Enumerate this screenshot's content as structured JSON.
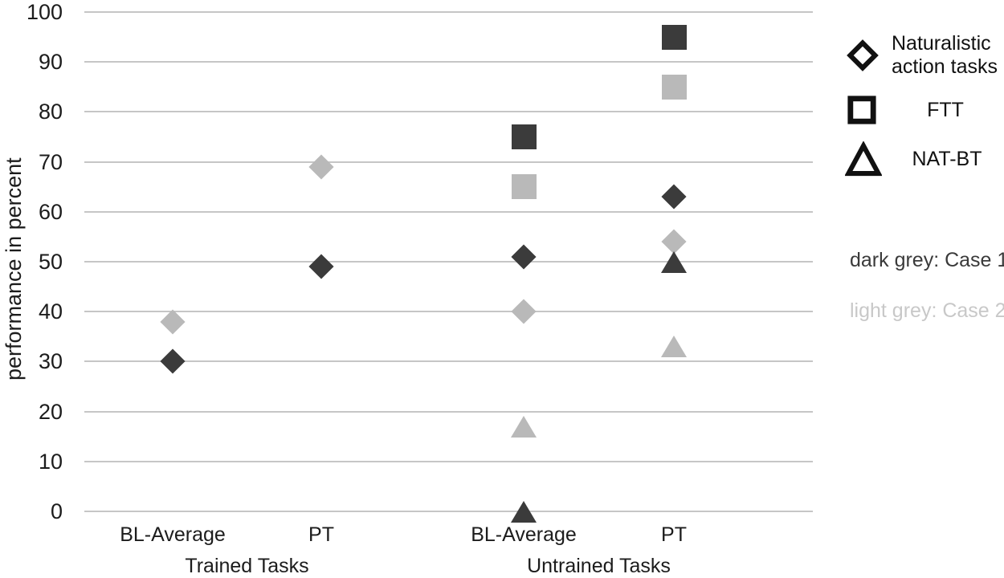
{
  "chart_data": {
    "type": "scatter",
    "title": "",
    "ylabel": "performance in percent",
    "ylim": [
      0,
      100
    ],
    "yticks": [
      0,
      10,
      20,
      30,
      40,
      50,
      60,
      70,
      80,
      90,
      100
    ],
    "grid": true,
    "x_categories": [
      "BL-Average",
      "PT",
      "BL-Average",
      "PT"
    ],
    "group_labels": [
      "Trained Tasks",
      "Untrained Tasks"
    ],
    "series": [
      {
        "name": "Naturalistic action tasks - Case 1",
        "task": "Naturalistic action tasks",
        "case": "Case 1",
        "marker": "diamond",
        "color": "#3b3b3b",
        "values": [
          30,
          49,
          51,
          63
        ]
      },
      {
        "name": "Naturalistic action tasks - Case 2",
        "task": "Naturalistic action tasks",
        "case": "Case 2",
        "marker": "diamond",
        "color": "#b9b9b9",
        "values": [
          38,
          69,
          40,
          54
        ]
      },
      {
        "name": "FTT - Case 1",
        "task": "FTT",
        "case": "Case 1",
        "marker": "square",
        "color": "#3b3b3b",
        "values": [
          null,
          null,
          75,
          95
        ]
      },
      {
        "name": "FTT - Case 2",
        "task": "FTT",
        "case": "Case 2",
        "marker": "square",
        "color": "#b9b9b9",
        "values": [
          null,
          null,
          65,
          85
        ]
      },
      {
        "name": "NAT-BT - Case 1",
        "task": "NAT-BT",
        "case": "Case 1",
        "marker": "triangle",
        "color": "#3b3b3b",
        "values": [
          null,
          null,
          0,
          50
        ]
      },
      {
        "name": "NAT-BT - Case 2",
        "task": "NAT-BT",
        "case": "Case 2",
        "marker": "triangle",
        "color": "#b9b9b9",
        "values": [
          null,
          null,
          17,
          33
        ]
      }
    ],
    "legend": {
      "position": "right",
      "items": [
        {
          "marker": "diamond",
          "label": "Naturalistic action tasks",
          "label_line1": "Naturalistic",
          "label_line2": "action tasks"
        },
        {
          "marker": "square",
          "label": "FTT"
        },
        {
          "marker": "triangle",
          "label": "NAT-BT"
        }
      ],
      "case_notes": [
        {
          "text": "dark grey: Case 1",
          "color": "#3a3a3a"
        },
        {
          "text": "light grey: Case 2",
          "color": "#c8c8c8"
        }
      ]
    },
    "colors": {
      "case1_dark_grey": "#3b3b3b",
      "case2_light_grey": "#b9b9b9",
      "gridline": "#c6c6c6",
      "text": "#1c1c1c"
    }
  }
}
